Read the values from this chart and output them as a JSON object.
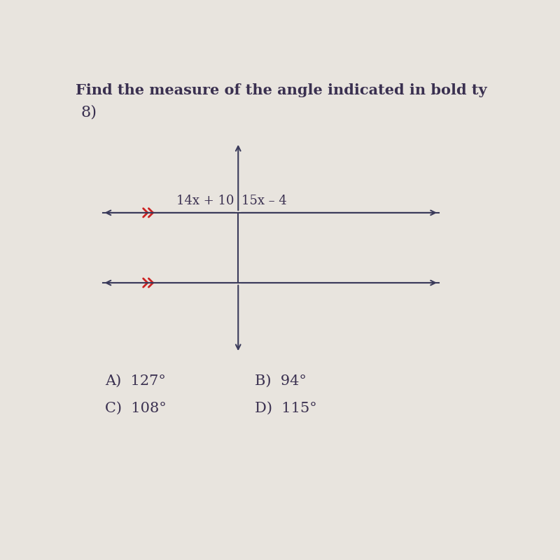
{
  "title": "Find the measure of the angle indicated in bold ty",
  "problem_number": "8)",
  "background_color": "#e8e4de",
  "line1_label_left": "14x + 10",
  "line1_label_right": "15x – 4",
  "answer_A": "A)  127°",
  "answer_B": "B)  94°",
  "answer_C": "C)  108°",
  "answer_D": "D)  115°",
  "title_fontsize": 15,
  "answer_fontsize": 15,
  "problem_number_fontsize": 16,
  "label_fontsize": 13,
  "line_color": "#3a3a5a",
  "arrow_color": "#cc2222"
}
